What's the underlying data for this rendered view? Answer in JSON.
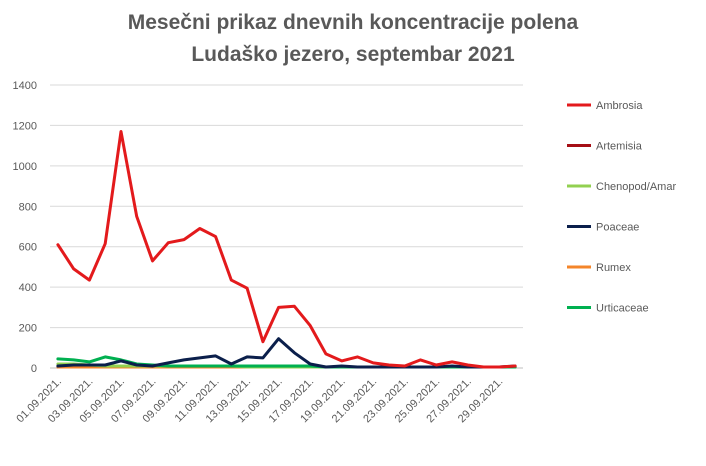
{
  "chart_data": {
    "type": "line",
    "title": "Mesečni prikaz dnevnih koncentracije polena",
    "subtitle": "Ludaško jezero, septembar 2021",
    "xlabel": "",
    "ylabel": "",
    "ylim": [
      0,
      1400
    ],
    "y_ticks": [
      0,
      200,
      400,
      600,
      800,
      1000,
      1200,
      1400
    ],
    "x": [
      "01.09.2021.",
      "02.09.2021.",
      "03.09.2021.",
      "04.09.2021.",
      "05.09.2021.",
      "06.09.2021.",
      "07.09.2021.",
      "08.09.2021.",
      "09.09.2021.",
      "10.09.2021.",
      "11.09.2021.",
      "12.09.2021.",
      "13.09.2021.",
      "14.09.2021.",
      "15.09.2021.",
      "16.09.2021.",
      "17.09.2021.",
      "18.09.2021.",
      "19.09.2021.",
      "20.09.2021.",
      "21.09.2021.",
      "22.09.2021.",
      "23.09.2021.",
      "24.09.2021.",
      "25.09.2021.",
      "26.09.2021.",
      "27.09.2021.",
      "28.09.2021.",
      "29.09.2021.",
      "30.09.2021."
    ],
    "x_tick_labels": [
      "01.09.2021.",
      "03.09.2021.",
      "05.09.2021.",
      "07.09.2021.",
      "09.09.2021.",
      "11.09.2021.",
      "13.09.2021.",
      "15.09.2021.",
      "17.09.2021.",
      "19.09.2021.",
      "21.09.2021.",
      "23.09.2021.",
      "25.09.2021.",
      "27.09.2021.",
      "29.09.2021."
    ],
    "grid": "horizontal",
    "legend_position": "right",
    "series": [
      {
        "name": "Ambrosia",
        "color": "#e31a1c",
        "values": [
          610,
          490,
          435,
          615,
          1170,
          750,
          530,
          620,
          635,
          690,
          650,
          435,
          395,
          130,
          300,
          305,
          210,
          70,
          35,
          55,
          25,
          15,
          10,
          40,
          15,
          30,
          15,
          5,
          5,
          10
        ]
      },
      {
        "name": "Artemisia",
        "color": "#a50f15",
        "values": [
          5,
          5,
          5,
          5,
          5,
          5,
          5,
          5,
          5,
          5,
          5,
          5,
          5,
          5,
          5,
          5,
          5,
          5,
          5,
          5,
          5,
          5,
          5,
          5,
          5,
          5,
          5,
          5,
          5,
          5
        ]
      },
      {
        "name": "Chenopod/Amar",
        "color": "#92d050",
        "values": [
          20,
          20,
          15,
          10,
          10,
          10,
          10,
          10,
          10,
          10,
          10,
          10,
          5,
          5,
          5,
          5,
          5,
          5,
          5,
          5,
          5,
          5,
          5,
          5,
          5,
          5,
          5,
          5,
          5,
          5
        ]
      },
      {
        "name": "Poaceae",
        "color": "#0b1f4b",
        "values": [
          10,
          15,
          15,
          15,
          35,
          15,
          10,
          25,
          40,
          50,
          60,
          20,
          55,
          50,
          145,
          75,
          20,
          5,
          10,
          5,
          5,
          5,
          5,
          5,
          5,
          10,
          5,
          5,
          5,
          10
        ]
      },
      {
        "name": "Rumex",
        "color": "#f4852a",
        "values": [
          5,
          5,
          5,
          5,
          5,
          5,
          5,
          5,
          5,
          5,
          5,
          5,
          5,
          5,
          5,
          5,
          5,
          5,
          5,
          5,
          5,
          5,
          5,
          5,
          5,
          5,
          5,
          5,
          5,
          5
        ]
      },
      {
        "name": "Urticaceae",
        "color": "#00b050",
        "values": [
          45,
          40,
          30,
          55,
          40,
          20,
          15,
          10,
          10,
          10,
          10,
          10,
          10,
          10,
          10,
          10,
          10,
          5,
          5,
          5,
          5,
          5,
          5,
          5,
          5,
          5,
          5,
          5,
          5,
          5
        ]
      }
    ]
  }
}
